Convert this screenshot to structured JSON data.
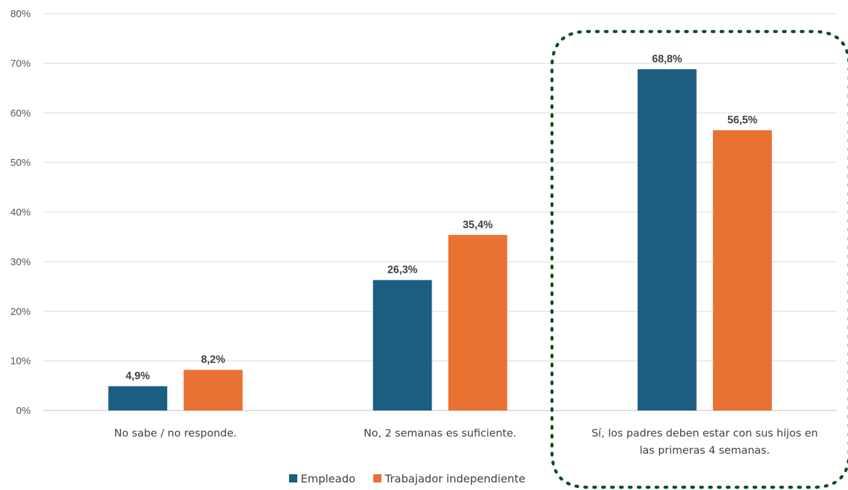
{
  "chart_data": {
    "type": "bar",
    "title": "",
    "xlabel": "",
    "ylabel": "",
    "ylim": [
      0,
      80
    ],
    "y_ticks": [
      0,
      10,
      20,
      30,
      40,
      50,
      60,
      70,
      80
    ],
    "y_tick_labels": [
      "0%",
      "10%",
      "20%",
      "30%",
      "40%",
      "50%",
      "60%",
      "70%",
      "80%"
    ],
    "categories": [
      [
        "No sabe / no responde."
      ],
      [
        "No, 2 semanas es suficiente."
      ],
      [
        "Sí, los padres deben estar con sus hijos en",
        "las primeras 4 semanas."
      ]
    ],
    "series": [
      {
        "name": "Empleado",
        "color": "#1B5E82",
        "values": [
          4.9,
          26.3,
          68.8
        ],
        "labels": [
          "4,9%",
          "26,3%",
          "68,8%"
        ]
      },
      {
        "name": "Trabajador independiente",
        "color": "#E97132",
        "values": [
          8.2,
          35.4,
          56.5
        ],
        "labels": [
          "8,2%",
          "35,4%",
          "56,5%"
        ]
      }
    ],
    "grid": true,
    "gridline_color": "#D9D9D9",
    "legend": "bottom-center",
    "annotation": {
      "type": "dotted-rounded-box",
      "highlights_category": 2,
      "color": "#0B4F1E"
    }
  }
}
